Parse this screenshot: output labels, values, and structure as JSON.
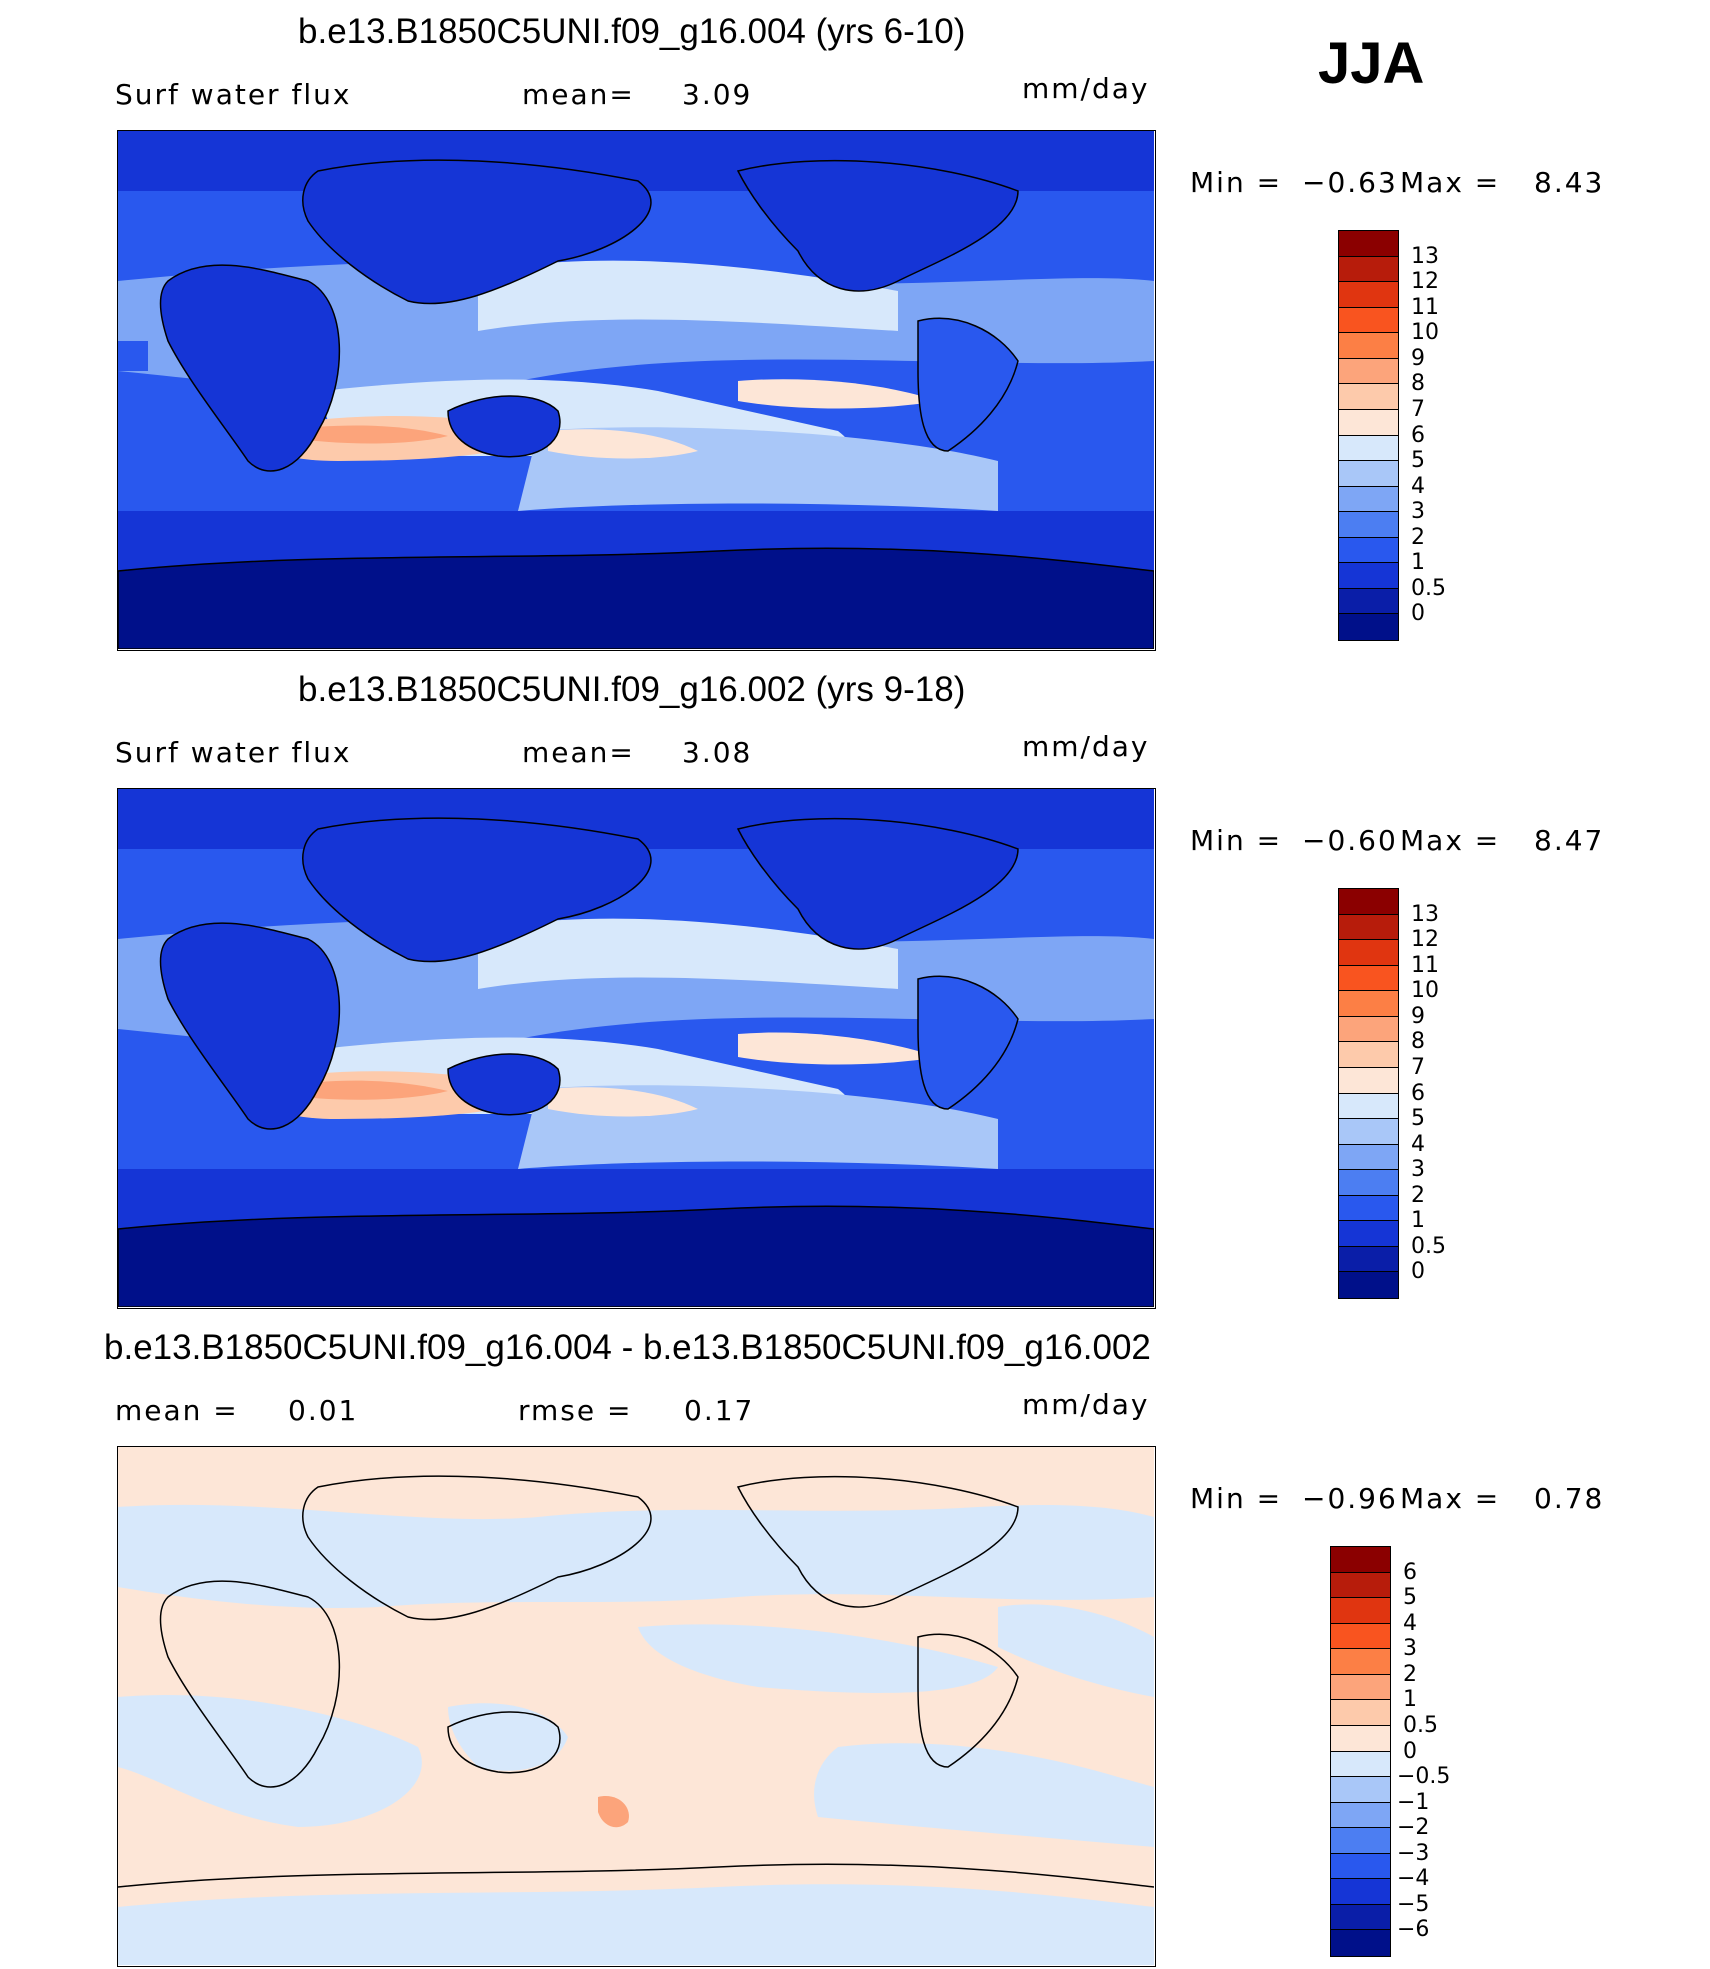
{
  "season": "JJA",
  "units": "mm/day",
  "panels": [
    {
      "title": "b.e13.B1850C5UNI.f09_g16.004 (yrs 6-10)",
      "variable": "Surf water flux",
      "stat1_label": "mean=",
      "stat1_value": "3.09",
      "units": "mm/day",
      "min_label": "Min =",
      "min_value": "−0.63",
      "max_label": "Max =",
      "max_value": "8.43",
      "colorbar_labels": [
        "13",
        "12",
        "11",
        "10",
        "9",
        "8",
        "7",
        "6",
        "5",
        "4",
        "3",
        "2",
        "1",
        "0.5",
        "0"
      ],
      "colors": [
        "#8b0000",
        "#b71c0b",
        "#e03510",
        "#f9541f",
        "#fc7f45",
        "#fca47b",
        "#fdcaab",
        "#fde6d7",
        "#d7e8fb",
        "#a9c7f8",
        "#7ea6f5",
        "#4c7ef2",
        "#2958ee",
        "#1535d6",
        "#0a1ea8",
        "#00108a"
      ]
    },
    {
      "title": "b.e13.B1850C5UNI.f09_g16.002 (yrs 9-18)",
      "variable": "Surf water flux",
      "stat1_label": "mean=",
      "stat1_value": "3.08",
      "units": "mm/day",
      "min_label": "Min =",
      "min_value": "−0.60",
      "max_label": "Max =",
      "max_value": "8.47",
      "colorbar_labels": [
        "13",
        "12",
        "11",
        "10",
        "9",
        "8",
        "7",
        "6",
        "5",
        "4",
        "3",
        "2",
        "1",
        "0.5",
        "0"
      ],
      "colors": [
        "#8b0000",
        "#b71c0b",
        "#e03510",
        "#f9541f",
        "#fc7f45",
        "#fca47b",
        "#fdcaab",
        "#fde6d7",
        "#d7e8fb",
        "#a9c7f8",
        "#7ea6f5",
        "#4c7ef2",
        "#2958ee",
        "#1535d6",
        "#0a1ea8",
        "#00108a"
      ]
    },
    {
      "title": "b.e13.B1850C5UNI.f09_g16.004 - b.e13.B1850C5UNI.f09_g16.002",
      "stat1_label": "mean =",
      "stat1_value": "0.01",
      "stat2_label": "rmse =",
      "stat2_value": "0.17",
      "units": "mm/day",
      "min_label": "Min =",
      "min_value": "−0.96",
      "max_label": "Max =",
      "max_value": "0.78",
      "colorbar_labels": [
        "6",
        "5",
        "4",
        "3",
        "2",
        "1",
        "0.5",
        "0",
        "−0.5",
        "−1",
        "−2",
        "−3",
        "−4",
        "−5",
        "−6"
      ],
      "colors": [
        "#8b0000",
        "#b71c0b",
        "#e03510",
        "#f9541f",
        "#fc7f45",
        "#fca47b",
        "#fdcaab",
        "#fde6d7",
        "#d7e8fb",
        "#a9c7f8",
        "#7ea6f5",
        "#4c7ef2",
        "#2958ee",
        "#1535d6",
        "#0a1ea8",
        "#00108a"
      ]
    }
  ]
}
